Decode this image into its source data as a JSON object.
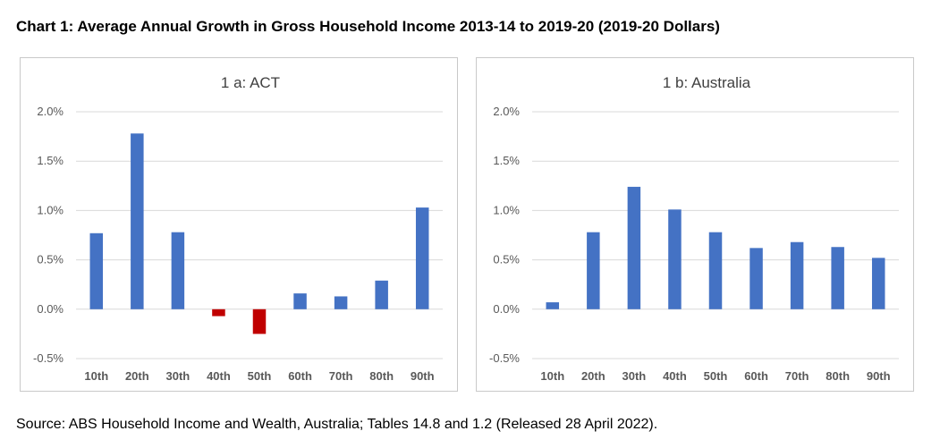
{
  "title": "Chart 1: Average Annual Growth in Gross Household Income 2013-14 to 2019-20 (2019-20 Dollars)",
  "source": "Source: ABS Household Income and Wealth, Australia; Tables 14.8 and 1.2 (Released 28 April 2022).",
  "colors": {
    "positive": "#4472c4",
    "negative": "#c00000",
    "grid": "#d9d9d9",
    "axis_text": "#595959"
  },
  "chart_data": [
    {
      "type": "bar",
      "title": "1 a: ACT",
      "categories": [
        "10th",
        "20th",
        "30th",
        "40th",
        "50th",
        "60th",
        "70th",
        "80th",
        "90th"
      ],
      "values": [
        0.77,
        1.78,
        0.78,
        -0.07,
        -0.25,
        0.16,
        0.13,
        0.29,
        1.03
      ],
      "ylim": [
        -0.5,
        2.0
      ],
      "yticks": [
        2.0,
        1.5,
        1.0,
        0.5,
        0.0,
        -0.5
      ],
      "ytick_labels": [
        "2.0%",
        "1.5%",
        "1.0%",
        "0.5%",
        "0.0%",
        "-0.5%"
      ],
      "xlabel": "",
      "ylabel": "",
      "grid": true
    },
    {
      "type": "bar",
      "title": "1 b: Australia",
      "categories": [
        "10th",
        "20th",
        "30th",
        "40th",
        "50th",
        "60th",
        "70th",
        "80th",
        "90th"
      ],
      "values": [
        0.07,
        0.78,
        1.24,
        1.01,
        0.78,
        0.62,
        0.68,
        0.63,
        0.52
      ],
      "ylim": [
        -0.5,
        2.0
      ],
      "yticks": [
        2.0,
        1.5,
        1.0,
        0.5,
        0.0,
        -0.5
      ],
      "ytick_labels": [
        "2.0%",
        "1.5%",
        "1.0%",
        "0.5%",
        "0.0%",
        "-0.5%"
      ],
      "xlabel": "",
      "ylabel": "",
      "grid": true
    }
  ]
}
